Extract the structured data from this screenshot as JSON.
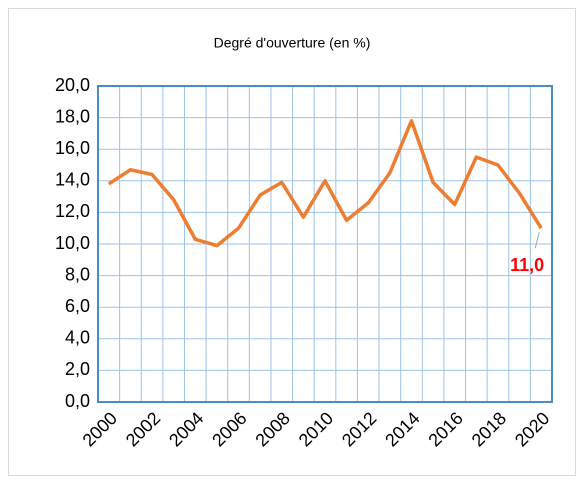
{
  "chart_data": {
    "type": "line",
    "title": "Degré d'ouverture (en %)",
    "categories": [
      "2000",
      null,
      "2002",
      null,
      "2004",
      null,
      "2006",
      null,
      "2008",
      null,
      "2010",
      null,
      "2012",
      null,
      "2014",
      null,
      "2016",
      null,
      "2018",
      null,
      "2020"
    ],
    "series": [
      {
        "color": "#ed7d31",
        "values": [
          13.8,
          14.7,
          14.4,
          12.8,
          10.3,
          9.9,
          11.0,
          13.1,
          13.9,
          11.7,
          14.0,
          11.5,
          12.6,
          14.5,
          17.8,
          13.9,
          12.5,
          15.5,
          15.0,
          13.2,
          11.0
        ],
        "value_labels": [
          null,
          null,
          null,
          null,
          null,
          null,
          null,
          null,
          null,
          null,
          null,
          null,
          null,
          null,
          null,
          null,
          null,
          null,
          null,
          null,
          "11,0"
        ]
      }
    ],
    "ylim": [
      0,
      20
    ],
    "yticks": [
      {
        "value": 0,
        "label": "0,0"
      },
      {
        "value": 2,
        "label": "2,0"
      },
      {
        "value": 4,
        "label": "4,0"
      },
      {
        "value": 6,
        "label": "6,0"
      },
      {
        "value": 8,
        "label": "8,0"
      },
      {
        "value": 10,
        "label": "10,0"
      },
      {
        "value": 12,
        "label": "12,0"
      },
      {
        "value": 14,
        "label": "14,0"
      },
      {
        "value": 16,
        "label": "16,0"
      },
      {
        "value": 18,
        "label": "18,0"
      },
      {
        "value": 20,
        "label": "20,0"
      }
    ],
    "grid": true
  }
}
